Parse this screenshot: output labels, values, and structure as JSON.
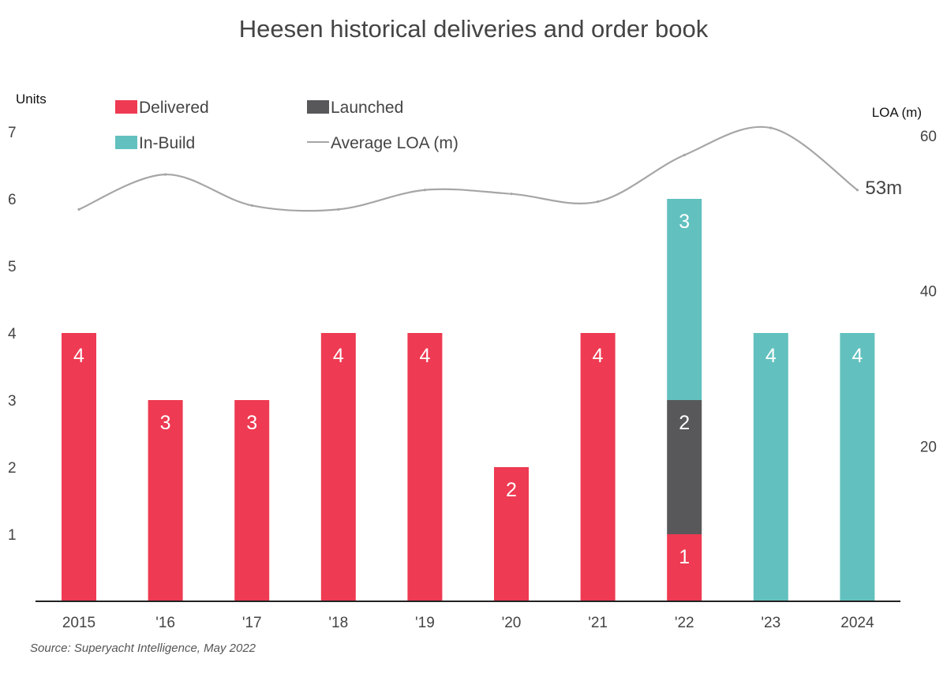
{
  "chart_data": {
    "type": "bar",
    "stacked": true,
    "title": "Heesen historical deliveries and order book",
    "categories": [
      "2015",
      "'16",
      "'17",
      "'18",
      "'19",
      "'20",
      "'21",
      "'22",
      "'23",
      "2024"
    ],
    "series": [
      {
        "name": "Delivered",
        "color": "#ee3a52",
        "values": [
          4,
          3,
          3,
          4,
          4,
          2,
          4,
          1,
          0,
          0
        ]
      },
      {
        "name": "Launched",
        "color": "#58585a",
        "values": [
          0,
          0,
          0,
          0,
          0,
          0,
          0,
          2,
          0,
          0
        ]
      },
      {
        "name": "In-Build",
        "color": "#62c1bf",
        "values": [
          0,
          0,
          0,
          0,
          0,
          0,
          0,
          3,
          4,
          4
        ]
      }
    ],
    "line": {
      "name": "Average LOA (m)",
      "color": "#a6a6a6",
      "axis": "right",
      "values": [
        50.5,
        55,
        51,
        50.5,
        53,
        52.5,
        51.5,
        57.5,
        61,
        53
      ],
      "end_label": "53m"
    },
    "y_left": {
      "label": "Units",
      "ticks": [
        "1",
        "2",
        "3",
        "4",
        "5",
        "6",
        "7"
      ],
      "ylim": [
        0,
        7
      ]
    },
    "y_right": {
      "label": "LOA (m)",
      "ticks": [
        "20",
        "40",
        "60"
      ],
      "ylim": [
        0,
        60.5
      ]
    },
    "legend_position": "top",
    "grid": false,
    "source": "Source: Superyacht Intelligence, May 2022"
  }
}
